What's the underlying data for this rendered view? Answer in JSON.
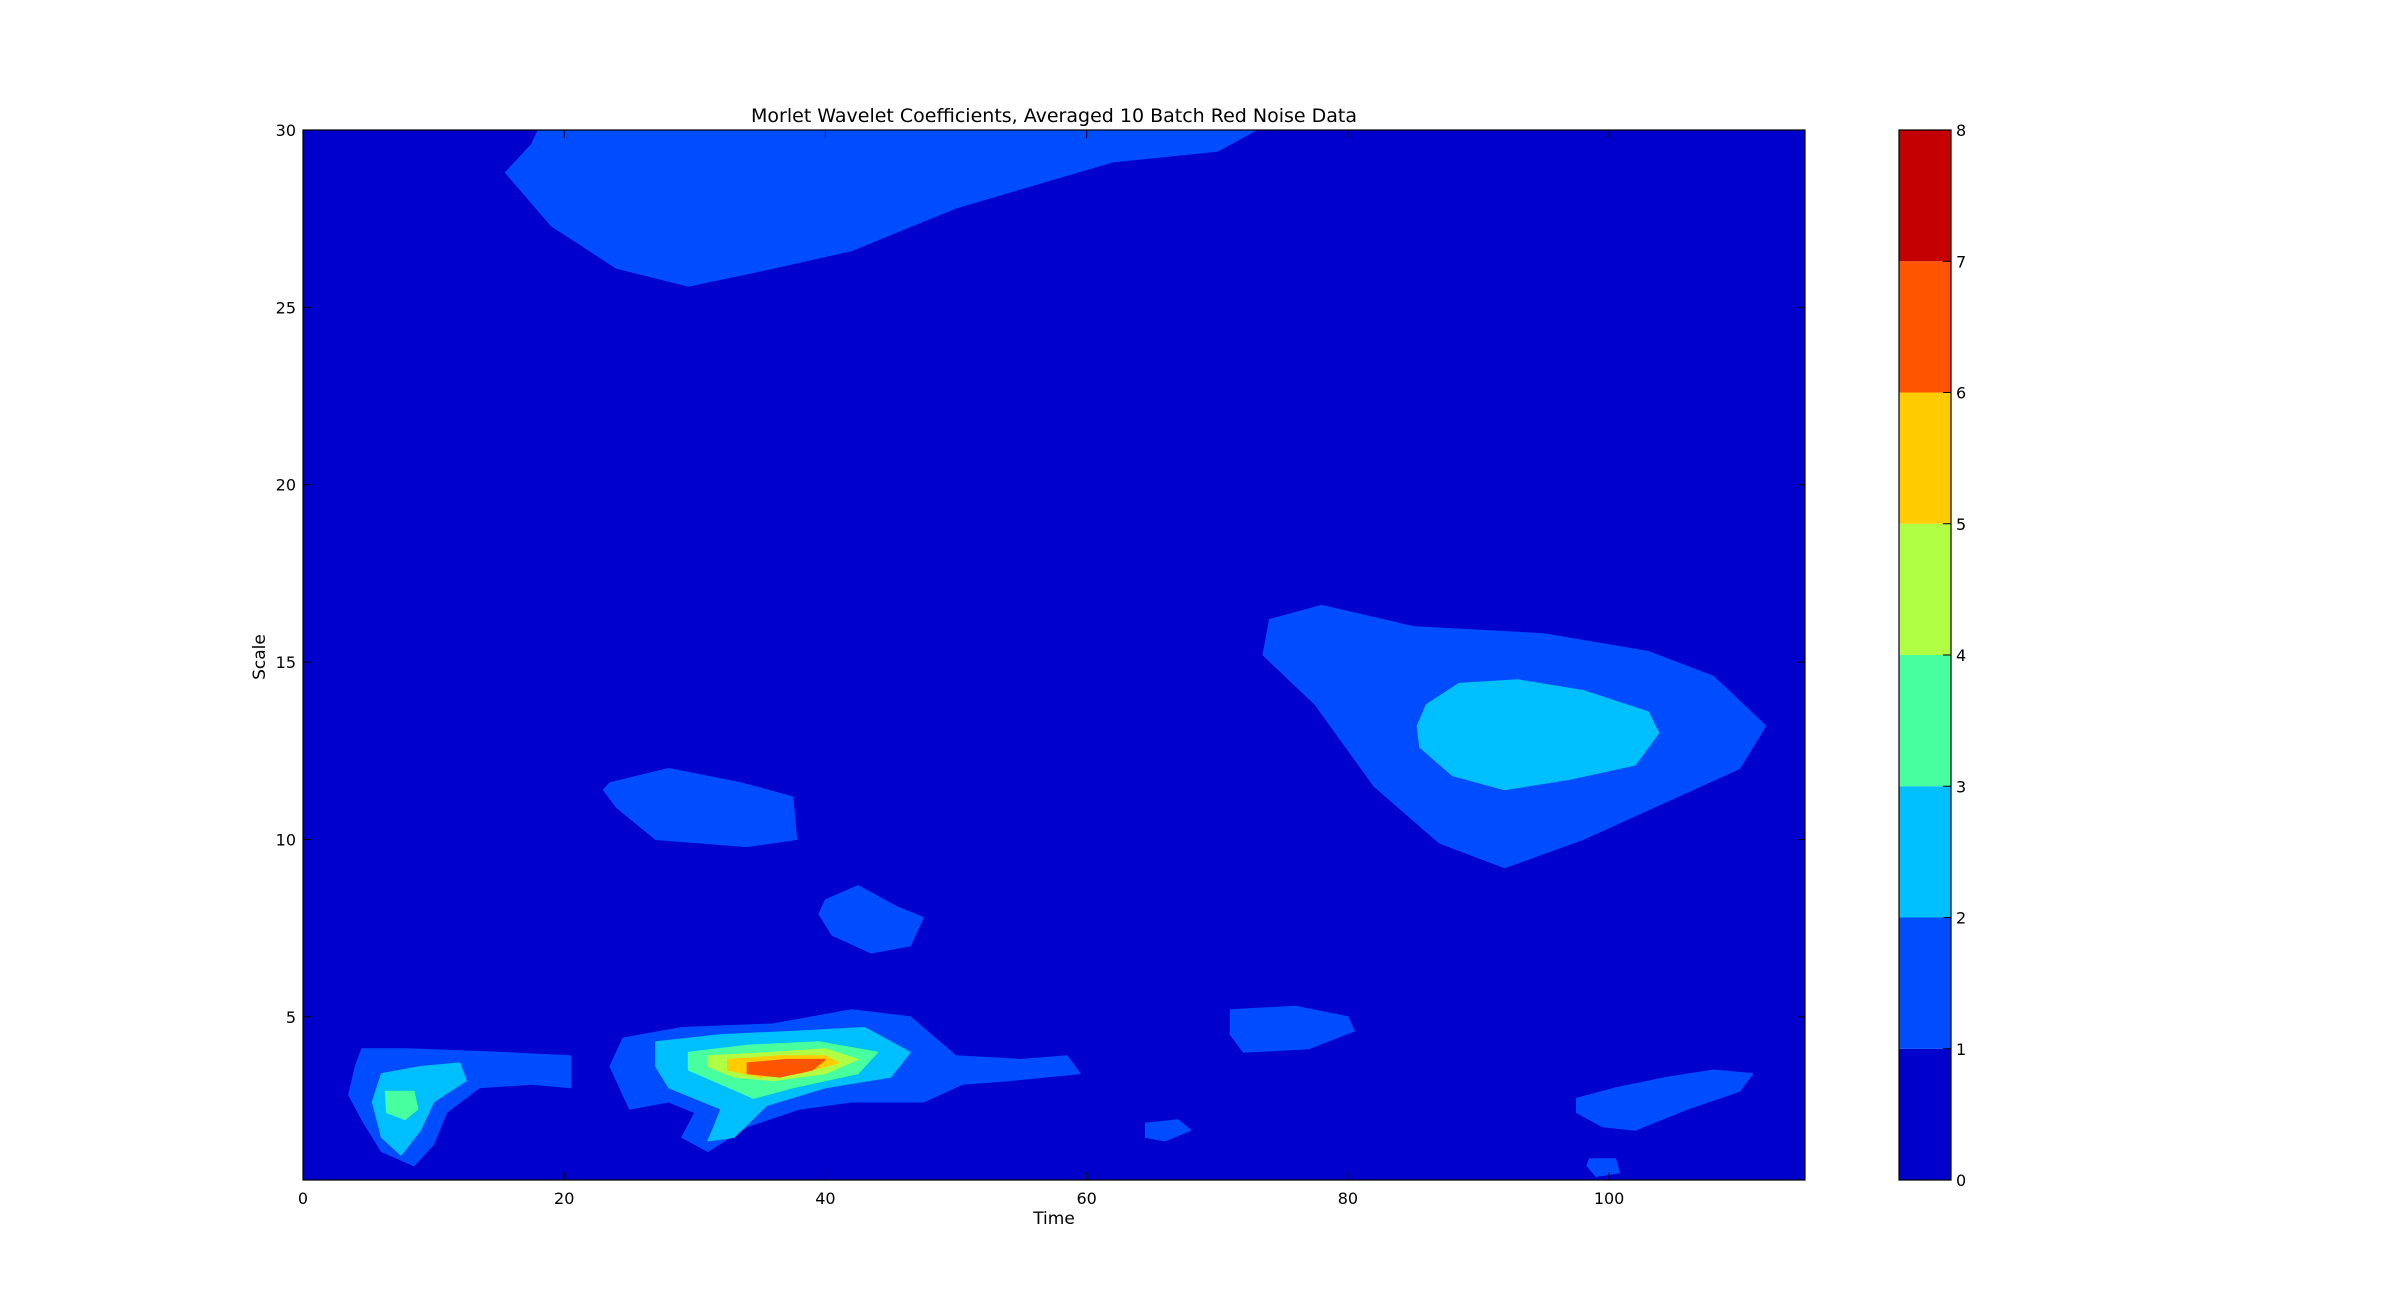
{
  "chart_data": {
    "type": "contour",
    "title": "Morlet Wavelet Coefficients, Averaged 10 Batch Red Noise Data",
    "xlabel": "Time",
    "ylabel": "Scale",
    "xlim": [
      0,
      115
    ],
    "ylim": [
      0.4,
      30
    ],
    "xticks": [
      0,
      20,
      40,
      60,
      80,
      100
    ],
    "yticks": [
      5,
      10,
      15,
      20,
      25,
      30
    ],
    "colormap": "jet",
    "grid": false,
    "colorbar": {
      "levels": [
        0,
        1,
        2,
        3,
        4,
        5,
        6,
        7,
        8
      ],
      "colors": [
        "#0000cd",
        "#004cff",
        "#00bfff",
        "#47ff9e",
        "#b0ff45",
        "#ffcc00",
        "#ff5500",
        "#c40000"
      ],
      "ticks": [
        "0",
        "1",
        "2",
        "3",
        "4",
        "5",
        "6",
        "7",
        "8"
      ]
    },
    "background_level": 0,
    "regions": [
      {
        "level": 1,
        "points": [
          [
            17.5,
            29.6
          ],
          [
            18.0,
            30.0
          ],
          [
            73.0,
            30.0
          ],
          [
            70.0,
            29.4
          ],
          [
            62.0,
            29.1
          ],
          [
            50.0,
            27.8
          ],
          [
            42.0,
            26.6
          ],
          [
            36.0,
            26.1
          ],
          [
            29.5,
            25.6
          ],
          [
            24.0,
            26.1
          ],
          [
            19.0,
            27.3
          ],
          [
            15.5,
            28.8
          ]
        ]
      },
      {
        "level": 1,
        "points": [
          [
            74.0,
            16.2
          ],
          [
            78.0,
            16.6
          ],
          [
            85.0,
            16.0
          ],
          [
            95.0,
            15.8
          ],
          [
            103.0,
            15.3
          ],
          [
            108.0,
            14.6
          ],
          [
            112.0,
            13.2
          ],
          [
            110.0,
            12.0
          ],
          [
            104.0,
            11.0
          ],
          [
            98.0,
            10.0
          ],
          [
            92.0,
            9.2
          ],
          [
            87.0,
            9.9
          ],
          [
            82.0,
            11.5
          ],
          [
            77.5,
            13.8
          ],
          [
            73.5,
            15.2
          ]
        ]
      },
      {
        "level": 2,
        "points": [
          [
            86.0,
            13.8
          ],
          [
            88.5,
            14.4
          ],
          [
            93.0,
            14.5
          ],
          [
            98.0,
            14.2
          ],
          [
            103.0,
            13.6
          ],
          [
            103.8,
            13.0
          ],
          [
            102.0,
            12.1
          ],
          [
            97.0,
            11.7
          ],
          [
            92.0,
            11.4
          ],
          [
            88.0,
            11.8
          ],
          [
            85.5,
            12.6
          ],
          [
            85.3,
            13.2
          ]
        ]
      },
      {
        "level": 1,
        "points": [
          [
            23.5,
            11.6
          ],
          [
            28.0,
            12.0
          ],
          [
            33.5,
            11.6
          ],
          [
            37.5,
            11.2
          ],
          [
            37.8,
            10.0
          ],
          [
            34.0,
            9.8
          ],
          [
            27.0,
            10.0
          ],
          [
            24.0,
            10.9
          ],
          [
            23.0,
            11.4
          ]
        ]
      },
      {
        "level": 1,
        "points": [
          [
            40.0,
            8.3
          ],
          [
            42.5,
            8.7
          ],
          [
            45.5,
            8.1
          ],
          [
            47.5,
            7.8
          ],
          [
            46.5,
            7.0
          ],
          [
            43.5,
            6.8
          ],
          [
            40.5,
            7.3
          ],
          [
            39.5,
            7.9
          ]
        ]
      },
      {
        "level": 1,
        "points": [
          [
            71.0,
            5.2
          ],
          [
            76.0,
            5.3
          ],
          [
            80.0,
            5.0
          ],
          [
            80.5,
            4.6
          ],
          [
            77.0,
            4.1
          ],
          [
            72.0,
            4.0
          ],
          [
            71.0,
            4.5
          ]
        ]
      },
      {
        "level": 1,
        "points": [
          [
            97.5,
            2.7
          ],
          [
            100.5,
            3.0
          ],
          [
            104.5,
            3.3
          ],
          [
            108.0,
            3.5
          ],
          [
            111.0,
            3.4
          ],
          [
            110.0,
            2.9
          ],
          [
            106.0,
            2.4
          ],
          [
            102.0,
            1.8
          ],
          [
            99.5,
            1.9
          ],
          [
            97.5,
            2.3
          ]
        ]
      },
      {
        "level": 1,
        "points": [
          [
            4.5,
            4.1
          ],
          [
            8.0,
            4.1
          ],
          [
            15.0,
            4.0
          ],
          [
            20.5,
            3.9
          ],
          [
            20.5,
            3.0
          ],
          [
            17.5,
            3.1
          ],
          [
            13.5,
            3.0
          ],
          [
            11.0,
            2.3
          ],
          [
            10.0,
            1.4
          ],
          [
            8.5,
            0.8
          ],
          [
            6.0,
            1.2
          ],
          [
            4.5,
            2.1
          ],
          [
            3.5,
            2.8
          ],
          [
            4.0,
            3.6
          ]
        ]
      },
      {
        "level": 2,
        "points": [
          [
            6.0,
            3.4
          ],
          [
            9.0,
            3.6
          ],
          [
            12.0,
            3.7
          ],
          [
            12.5,
            3.2
          ],
          [
            10.0,
            2.6
          ],
          [
            9.0,
            1.8
          ],
          [
            7.5,
            1.1
          ],
          [
            6.0,
            1.6
          ],
          [
            5.3,
            2.6
          ]
        ]
      },
      {
        "level": 3,
        "points": [
          [
            6.3,
            2.9
          ],
          [
            8.5,
            2.9
          ],
          [
            8.8,
            2.4
          ],
          [
            7.8,
            2.1
          ],
          [
            6.4,
            2.3
          ]
        ]
      },
      {
        "level": 1,
        "points": [
          [
            24.5,
            4.4
          ],
          [
            29.0,
            4.7
          ],
          [
            36.0,
            4.8
          ],
          [
            42.0,
            5.2
          ],
          [
            46.5,
            5.0
          ],
          [
            50.0,
            3.9
          ],
          [
            55.0,
            3.8
          ],
          [
            58.5,
            3.9
          ],
          [
            59.5,
            3.4
          ],
          [
            54.0,
            3.2
          ],
          [
            50.5,
            3.1
          ],
          [
            47.5,
            2.6
          ],
          [
            42.0,
            2.6
          ],
          [
            38.0,
            2.4
          ],
          [
            34.0,
            1.9
          ],
          [
            31.0,
            1.2
          ],
          [
            29.0,
            1.6
          ],
          [
            30.0,
            2.3
          ],
          [
            28.0,
            2.6
          ],
          [
            25.0,
            2.4
          ],
          [
            23.5,
            3.6
          ]
        ]
      },
      {
        "level": 2,
        "points": [
          [
            27.0,
            4.3
          ],
          [
            32.0,
            4.5
          ],
          [
            38.0,
            4.6
          ],
          [
            43.0,
            4.7
          ],
          [
            46.5,
            4.0
          ],
          [
            45.0,
            3.3
          ],
          [
            40.0,
            3.0
          ],
          [
            35.5,
            2.5
          ],
          [
            33.0,
            1.6
          ],
          [
            31.0,
            1.5
          ],
          [
            32.0,
            2.4
          ],
          [
            28.0,
            3.0
          ],
          [
            27.0,
            3.6
          ]
        ]
      },
      {
        "level": 3,
        "points": [
          [
            29.5,
            4.0
          ],
          [
            34.0,
            4.2
          ],
          [
            39.5,
            4.3
          ],
          [
            44.0,
            4.0
          ],
          [
            42.5,
            3.4
          ],
          [
            37.5,
            3.0
          ],
          [
            34.5,
            2.7
          ],
          [
            32.0,
            3.1
          ],
          [
            29.5,
            3.5
          ]
        ]
      },
      {
        "level": 4,
        "points": [
          [
            31.0,
            3.9
          ],
          [
            36.0,
            4.0
          ],
          [
            40.0,
            4.1
          ],
          [
            42.5,
            3.8
          ],
          [
            40.0,
            3.4
          ],
          [
            36.0,
            3.2
          ],
          [
            33.0,
            3.3
          ],
          [
            31.0,
            3.6
          ]
        ]
      },
      {
        "level": 5,
        "points": [
          [
            32.5,
            3.8
          ],
          [
            36.5,
            3.9
          ],
          [
            40.0,
            3.9
          ],
          [
            41.0,
            3.7
          ],
          [
            38.0,
            3.4
          ],
          [
            35.0,
            3.3
          ],
          [
            32.5,
            3.5
          ]
        ]
      },
      {
        "level": 6,
        "points": [
          [
            34.0,
            3.7
          ],
          [
            37.0,
            3.8
          ],
          [
            40.0,
            3.8
          ],
          [
            39.0,
            3.5
          ],
          [
            36.5,
            3.3
          ],
          [
            34.0,
            3.4
          ]
        ]
      },
      {
        "level": 1,
        "points": [
          [
            64.5,
            2.0
          ],
          [
            67.0,
            2.1
          ],
          [
            68.0,
            1.8
          ],
          [
            66.0,
            1.5
          ],
          [
            64.5,
            1.6
          ]
        ]
      },
      {
        "level": 1,
        "points": [
          [
            98.5,
            1.0
          ],
          [
            100.5,
            1.0
          ],
          [
            100.8,
            0.6
          ],
          [
            99.0,
            0.5
          ],
          [
            98.3,
            0.8
          ]
        ]
      }
    ]
  }
}
